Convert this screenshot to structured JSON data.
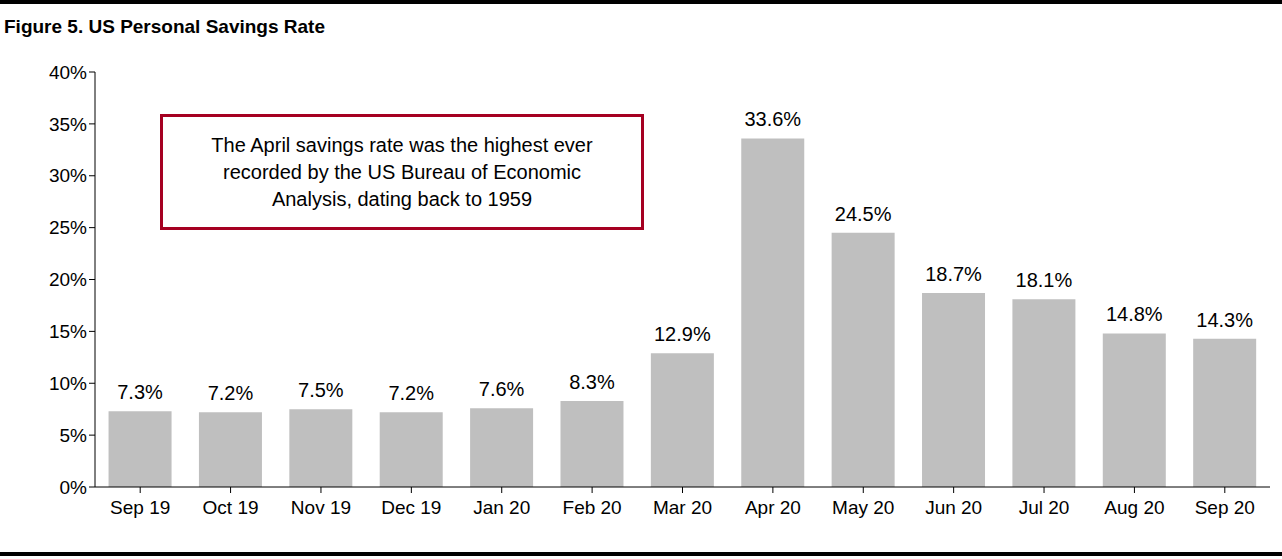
{
  "chart_data": {
    "type": "bar",
    "title": "Figure 5. US Personal Savings Rate",
    "annotation": "The April savings rate was the highest ever recorded by the US Bureau of Economic Analysis, dating back to 1959",
    "categories": [
      "Sep 19",
      "Oct 19",
      "Nov 19",
      "Dec 19",
      "Jan 20",
      "Feb 20",
      "Mar 20",
      "Apr 20",
      "May 20",
      "Jun 20",
      "Jul 20",
      "Aug 20",
      "Sep 20"
    ],
    "values": [
      7.3,
      7.2,
      7.5,
      7.2,
      7.6,
      8.3,
      12.9,
      33.6,
      24.5,
      18.7,
      18.1,
      14.8,
      14.3
    ],
    "value_labels": [
      "7.3%",
      "7.2%",
      "7.5%",
      "7.2%",
      "7.6%",
      "8.3%",
      "12.9%",
      "33.6%",
      "24.5%",
      "18.7%",
      "18.1%",
      "14.8%",
      "14.3%"
    ],
    "color": "#bfbfbf",
    "ylim": [
      0,
      40
    ],
    "yticks": [
      {
        "value": 0,
        "label": "0%"
      },
      {
        "value": 5,
        "label": "5%"
      },
      {
        "value": 10,
        "label": "10%"
      },
      {
        "value": 15,
        "label": "15%"
      },
      {
        "value": 20,
        "label": "20%"
      },
      {
        "value": 25,
        "label": "25%"
      },
      {
        "value": 30,
        "label": "30%"
      },
      {
        "value": 35,
        "label": "35%"
      },
      {
        "value": 40,
        "label": "40%"
      }
    ],
    "grid": false,
    "data_labels": true
  }
}
